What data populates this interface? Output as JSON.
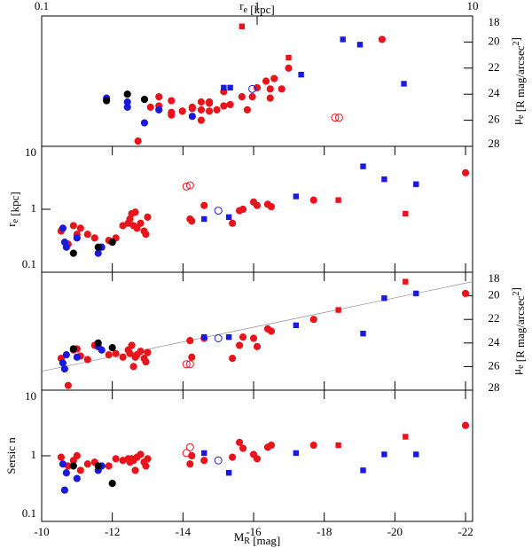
{
  "chart_data": {
    "type": "scatter",
    "bottom_axis": {
      "label": [
        {
          "t": "M"
        },
        {
          "t": "R",
          "sub": true
        },
        {
          "t": " [mag]"
        }
      ],
      "xlim": [
        -10,
        -22.2
      ],
      "xticks": [
        -10,
        -12,
        -14,
        -16,
        -18,
        -20,
        -22
      ]
    },
    "top_axis": {
      "label": [
        {
          "t": "r"
        },
        {
          "t": "e",
          "sub": true
        },
        {
          "t": " [kpc]"
        }
      ],
      "xlim": [
        0.1,
        10
      ],
      "xticks": [
        0.1,
        1,
        10
      ],
      "log": true
    },
    "re_axis": {
      "label": [
        {
          "t": "r"
        },
        {
          "t": "e",
          "sub": true
        },
        {
          "t": " [kpc]"
        }
      ],
      "ylim": [
        0.1,
        10
      ],
      "yticks": [
        0.1,
        1,
        10
      ],
      "log": true
    },
    "n_axis": {
      "label": [
        {
          "t": "Sersic n"
        }
      ],
      "ylim": [
        0.1,
        10
      ],
      "yticks": [
        0.1,
        1,
        10
      ],
      "log": true
    },
    "mu_axis": {
      "label": [
        {
          "t": "μ"
        },
        {
          "t": "e",
          "sub": true
        },
        {
          "t": " [R mag/arcsec"
        },
        {
          "t": "2",
          "sup": true
        },
        {
          "t": "]"
        }
      ],
      "ylim": [
        28,
        18
      ],
      "yticks": [
        18,
        20,
        22,
        24,
        26,
        28
      ]
    },
    "fit_line": {
      "color": "#9a9a9a",
      "x": [
        -10,
        -22.2
      ],
      "mu": [
        26.4,
        18.8
      ]
    },
    "series": [
      {
        "color": "#e8141c",
        "marker": "circle",
        "filled": true,
        "x": [
          -10.55,
          -10.75,
          -10.9,
          -11.1,
          -11.3,
          -11.5,
          -11.9,
          -12.1,
          -12.3,
          -12.45,
          -12.5,
          -12.55,
          -12.6,
          -12.7,
          -12.8,
          -12.9,
          -12.95,
          -13.0,
          -12.65,
          -11.0,
          -14.2,
          -14.25,
          -14.6,
          -15.4,
          -15.6,
          -15.7,
          -16.0,
          -16.1,
          -16.4,
          -16.5,
          -17.7,
          -22.0
        ],
        "re": [
          0.45,
          0.28,
          0.55,
          0.5,
          0.4,
          0.35,
          0.32,
          0.35,
          0.55,
          0.6,
          0.7,
          0.85,
          0.55,
          0.5,
          0.6,
          0.45,
          0.4,
          0.75,
          0.9,
          0.4,
          0.7,
          0.65,
          1.15,
          0.6,
          0.95,
          1.0,
          1.3,
          1.15,
          1.2,
          1.1,
          1.4,
          3.8
        ],
        "mu": [
          25.3,
          27.6,
          24.6,
          25.1,
          25.4,
          24.2,
          25.0,
          24.9,
          25.2,
          24.6,
          24.9,
          24.2,
          26.0,
          25.0,
          24.7,
          25.3,
          25.6,
          24.8,
          25.2,
          24.5,
          23.8,
          25.2,
          23.6,
          25.3,
          24.2,
          23.5,
          23.6,
          24.3,
          22.8,
          23.0,
          22.0,
          19.8
        ],
        "n": [
          0.95,
          0.7,
          0.85,
          0.6,
          0.75,
          0.8,
          0.7,
          0.9,
          0.85,
          0.9,
          0.8,
          0.9,
          0.85,
          0.95,
          1.05,
          0.8,
          0.7,
          0.9,
          0.6,
          1.0,
          0.75,
          1.0,
          0.85,
          0.95,
          1.6,
          1.3,
          1.05,
          0.9,
          1.35,
          1.45,
          1.45,
          2.9
        ]
      },
      {
        "color": "#1a1adf",
        "marker": "circle",
        "filled": true,
        "x": [
          -10.6,
          -10.65,
          -10.7,
          -11.0,
          -11.6,
          -11.7
        ],
        "re": [
          0.5,
          0.3,
          0.25,
          0.35,
          0.2,
          0.25
        ],
        "mu": [
          25.7,
          26.2,
          25.0,
          25.2,
          24.3,
          24.6
        ],
        "n": [
          0.75,
          0.3,
          0.55,
          0.45,
          0.6,
          0.7
        ]
      },
      {
        "color": "#000000",
        "marker": "circle",
        "filled": true,
        "x": [
          -10.9,
          -11.6,
          -12.0
        ],
        "re": [
          0.2,
          0.25,
          0.3
        ],
        "mu": [
          24.5,
          24.0,
          24.4
        ],
        "n": [
          0.7,
          0.7,
          0.38
        ]
      },
      {
        "color": "#e8141c",
        "marker": "circle",
        "filled": false,
        "x": [
          -14.1,
          -14.2
        ],
        "re": [
          2.3,
          2.4
        ],
        "mu": [
          25.8,
          25.8
        ],
        "n": [
          1.1,
          1.35
        ]
      },
      {
        "color": "#1a1adf",
        "marker": "circle",
        "filled": false,
        "x": [
          -15.0
        ],
        "re": [
          0.95
        ],
        "mu": [
          23.6
        ],
        "n": [
          0.85
        ]
      },
      {
        "color": "#e8141c",
        "marker": "square",
        "filled": true,
        "x": [
          -18.4,
          -20.3
        ],
        "re": [
          1.4,
          0.85
        ],
        "mu": [
          21.2,
          18.8
        ],
        "n": [
          1.45,
          1.95
        ]
      },
      {
        "color": "#1a1adf",
        "marker": "square",
        "filled": true,
        "x": [
          -14.6,
          -15.3,
          -17.2,
          -19.1,
          -19.7,
          -20.6
        ],
        "re": [
          0.7,
          0.75,
          1.6,
          4.8,
          3.0,
          2.5
        ],
        "mu": [
          23.5,
          23.5,
          22.5,
          23.2,
          20.2,
          19.8
        ],
        "n": [
          1.1,
          0.55,
          1.1,
          0.6,
          1.05,
          1.05
        ]
      }
    ]
  }
}
